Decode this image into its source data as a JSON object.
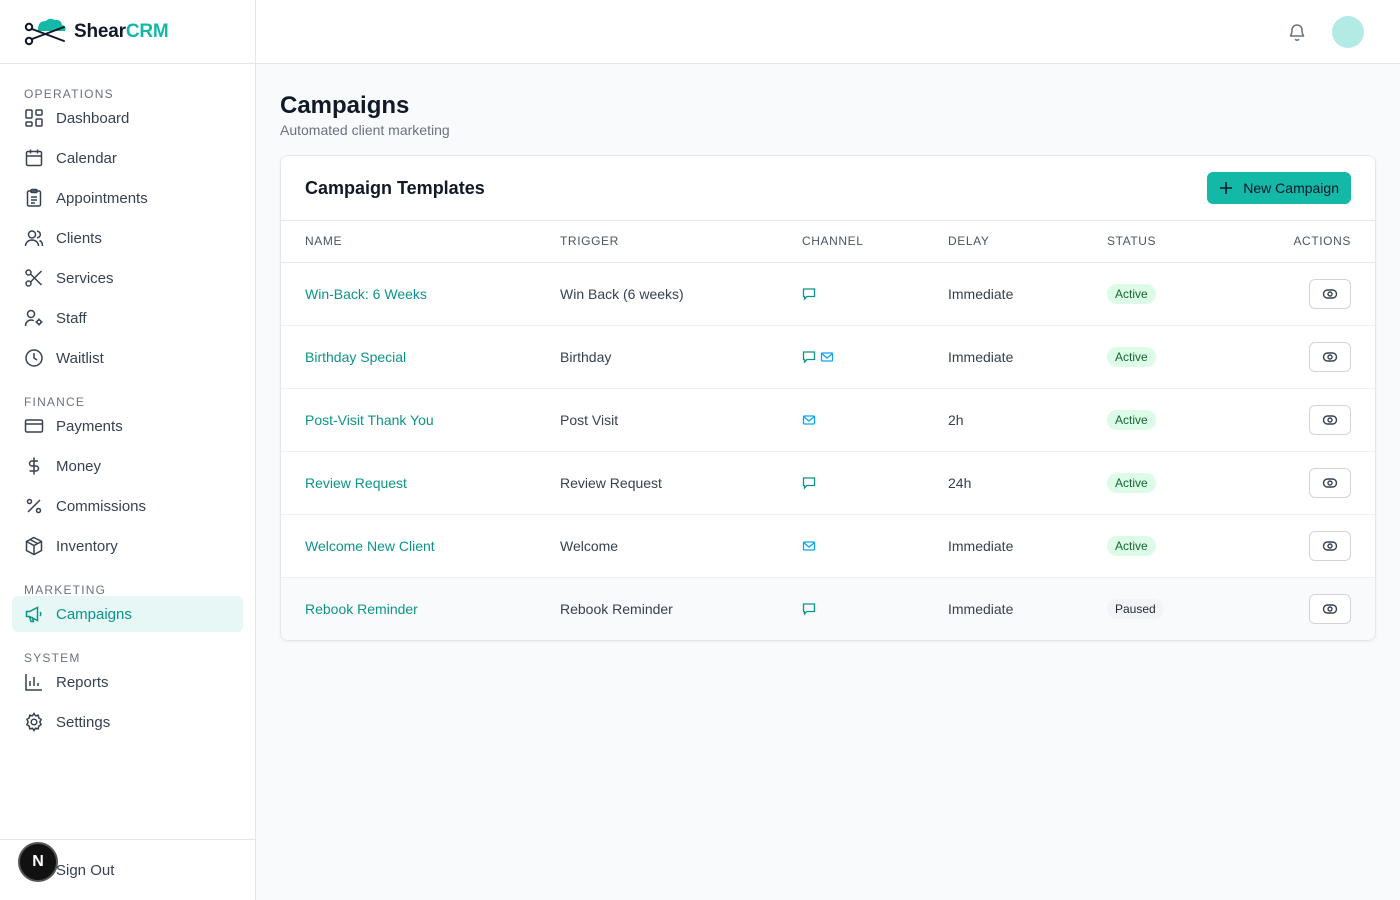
{
  "brand": {
    "name_part1": "Shear",
    "name_part2": "CRM"
  },
  "colors": {
    "accent": "#14b8a6",
    "accent_text": "#0d9488",
    "active_bg": "#dcfce7",
    "active_text": "#166534",
    "channel_icon": "#0d9488",
    "email_icon": "#0ea5e9"
  },
  "sidebar": {
    "sections": [
      {
        "label": "OPERATIONS",
        "items": [
          {
            "label": "Dashboard",
            "icon": "dashboard-icon"
          },
          {
            "label": "Calendar",
            "icon": "calendar-icon"
          },
          {
            "label": "Appointments",
            "icon": "clipboard-icon"
          },
          {
            "label": "Clients",
            "icon": "users-icon"
          },
          {
            "label": "Services",
            "icon": "scissors-icon"
          },
          {
            "label": "Staff",
            "icon": "user-cog-icon"
          },
          {
            "label": "Waitlist",
            "icon": "clock-icon"
          }
        ]
      },
      {
        "label": "FINANCE",
        "items": [
          {
            "label": "Payments",
            "icon": "credit-card-icon"
          },
          {
            "label": "Money",
            "icon": "dollar-icon"
          },
          {
            "label": "Commissions",
            "icon": "percent-icon"
          },
          {
            "label": "Inventory",
            "icon": "package-icon"
          }
        ]
      },
      {
        "label": "MARKETING",
        "items": [
          {
            "label": "Campaigns",
            "icon": "megaphone-icon",
            "active": true
          }
        ]
      },
      {
        "label": "SYSTEM",
        "items": [
          {
            "label": "Reports",
            "icon": "bar-chart-icon"
          },
          {
            "label": "Settings",
            "icon": "gear-icon"
          }
        ]
      }
    ],
    "signout_label": "Sign Out",
    "dev_badge": "N"
  },
  "page": {
    "title": "Campaigns",
    "subtitle": "Automated client marketing"
  },
  "card": {
    "title": "Campaign Templates",
    "new_button_label": "New Campaign",
    "columns": [
      "NAME",
      "TRIGGER",
      "CHANNEL",
      "DELAY",
      "STATUS",
      "ACTIONS"
    ],
    "rows": [
      {
        "name": "Win-Back: 6 Weeks",
        "trigger": "Win Back (6 weeks)",
        "channels": [
          "sms"
        ],
        "delay": "Immediate",
        "status": "Active"
      },
      {
        "name": "Birthday Special",
        "trigger": "Birthday",
        "channels": [
          "sms",
          "email"
        ],
        "delay": "Immediate",
        "status": "Active"
      },
      {
        "name": "Post-Visit Thank You",
        "trigger": "Post Visit",
        "channels": [
          "email"
        ],
        "delay": "2h",
        "status": "Active"
      },
      {
        "name": "Review Request",
        "trigger": "Review Request",
        "channels": [
          "sms"
        ],
        "delay": "24h",
        "status": "Active"
      },
      {
        "name": "Welcome New Client",
        "trigger": "Welcome",
        "channels": [
          "email"
        ],
        "delay": "Immediate",
        "status": "Active"
      },
      {
        "name": "Rebook Reminder",
        "trigger": "Rebook Reminder",
        "channels": [
          "sms"
        ],
        "delay": "Immediate",
        "status": "Paused"
      }
    ]
  }
}
